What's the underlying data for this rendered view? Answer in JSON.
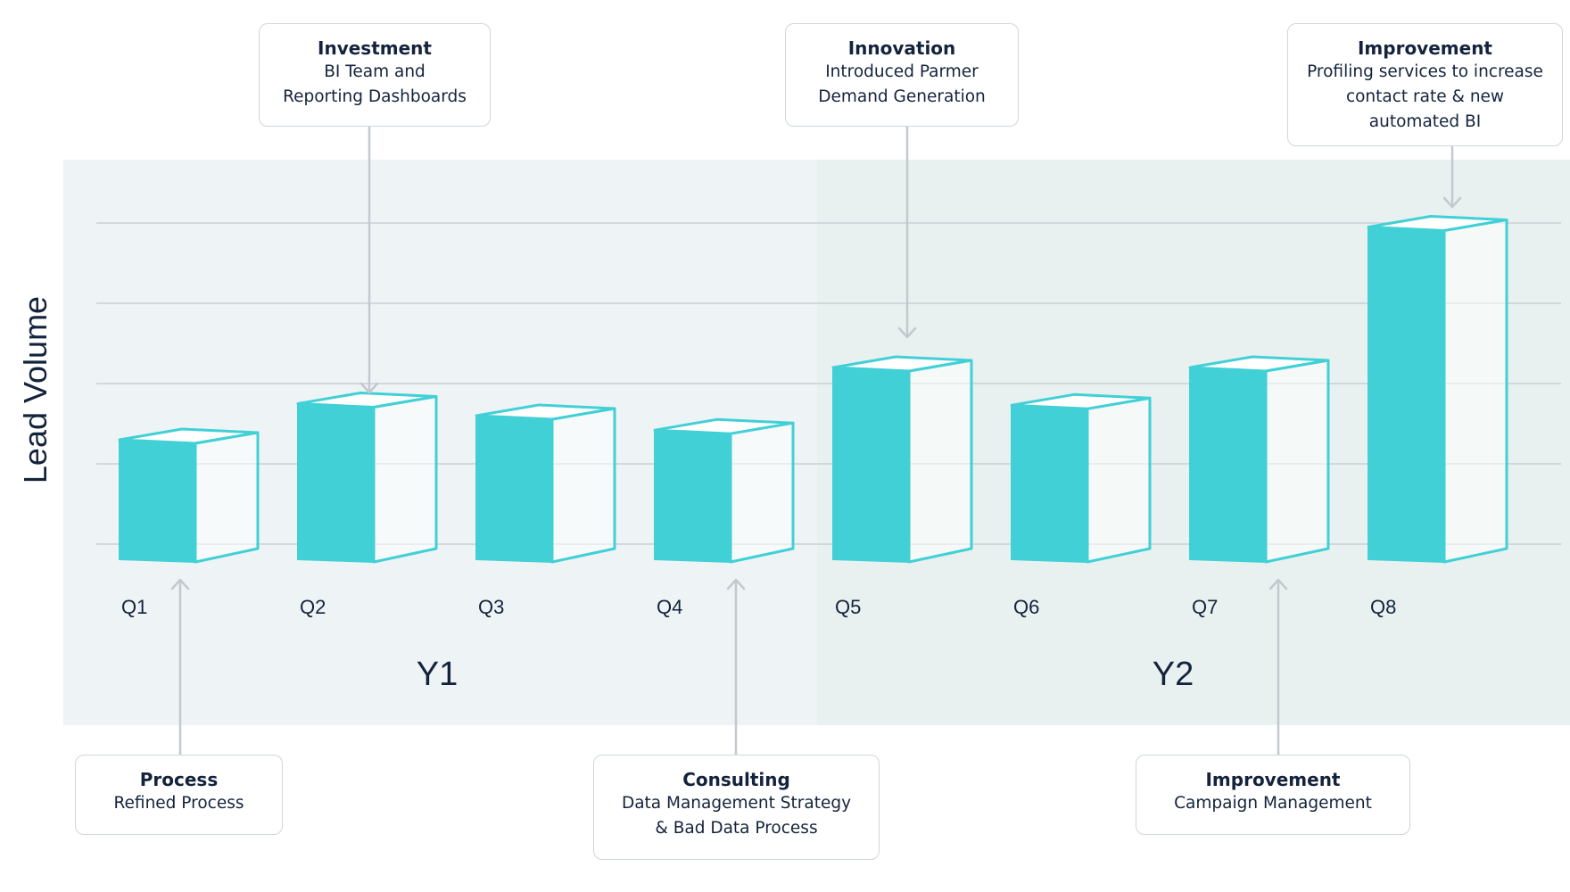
{
  "chart_data": {
    "type": "bar",
    "title": "",
    "xlabel": "",
    "ylabel": "Lead Volume",
    "categories": [
      "Q1",
      "Q2",
      "Q3",
      "Q4",
      "Q5",
      "Q6",
      "Q7",
      "Q8"
    ],
    "values": [
      1.3,
      1.75,
      1.6,
      1.42,
      2.2,
      1.73,
      2.2,
      3.95
    ],
    "ylim": [
      0,
      4.2
    ],
    "grid": true,
    "groups": [
      {
        "label": "Y1",
        "categories": [
          "Q1",
          "Q2",
          "Q3",
          "Q4"
        ]
      },
      {
        "label": "Y2",
        "categories": [
          "Q5",
          "Q6",
          "Q7",
          "Q8"
        ]
      }
    ],
    "colors": {
      "bar": "#41d0d6",
      "bar_outline": "#41d0d6",
      "grid": "#c8cfd4",
      "arrow": "#c3c9cf",
      "y1_bg": "#eef3f6",
      "y2_bg": "#e8f1f0"
    }
  },
  "callouts": [
    {
      "title": "Investment",
      "text": "BI Team and\nReporting Dashboards",
      "target": "Q2"
    },
    {
      "title": "Innovation",
      "text": "Introduced Parmer\nDemand Generation",
      "target": "Q5"
    },
    {
      "title": "Improvement",
      "text": "Profiling services to increase\ncontact rate & new\nautomated BI",
      "target": "Q8"
    },
    {
      "title": "Process",
      "text": "Refined Process",
      "target": "Q1"
    },
    {
      "title": "Consulting",
      "text": "Data Management Strategy\n& Bad Data Process",
      "target": "Q4"
    },
    {
      "title": "Improvement",
      "text": "Campaign Management",
      "target": "Q7"
    }
  ]
}
